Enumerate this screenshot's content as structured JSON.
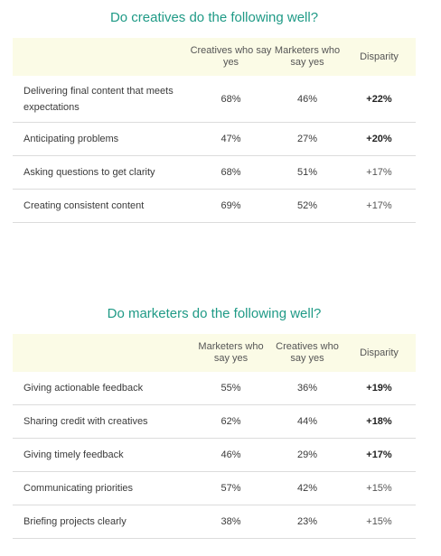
{
  "table1": {
    "title": "Do creatives do the following well?",
    "headers": [
      "Creatives who say yes",
      "Marketers who say yes",
      "Disparity"
    ],
    "rows": [
      {
        "label": "Delivering final content that meets expectations",
        "a": "68%",
        "b": "46%",
        "disparity": "+22%",
        "emphasized": true
      },
      {
        "label": "Anticipating problems",
        "a": "47%",
        "b": "27%",
        "disparity": "+20%",
        "emphasized": true
      },
      {
        "label": "Asking questions to get clarity",
        "a": "68%",
        "b": "51%",
        "disparity": "+17%",
        "emphasized": false
      },
      {
        "label": "Creating consistent content",
        "a": "69%",
        "b": "52%",
        "disparity": "+17%",
        "emphasized": false
      }
    ]
  },
  "table2": {
    "title": "Do marketers do the following well?",
    "headers": [
      "Marketers who say yes",
      "Creatives who say yes",
      "Disparity"
    ],
    "rows": [
      {
        "label": "Giving actionable feedback",
        "a": "55%",
        "b": "36%",
        "disparity": "+19%",
        "emphasized": true
      },
      {
        "label": "Sharing credit with creatives",
        "a": "62%",
        "b": "44%",
        "disparity": "+18%",
        "emphasized": true
      },
      {
        "label": "Giving timely feedback",
        "a": "46%",
        "b": "29%",
        "disparity": "+17%",
        "emphasized": true
      },
      {
        "label": "Communicating priorities",
        "a": "57%",
        "b": "42%",
        "disparity": "+15%",
        "emphasized": false
      },
      {
        "label": "Briefing projects clearly",
        "a": "38%",
        "b": "23%",
        "disparity": "+15%",
        "emphasized": false
      }
    ]
  },
  "colors": {
    "title": "#1f9a86",
    "header_bg": "#fbfbe6",
    "divider": "#dcdcdc"
  }
}
